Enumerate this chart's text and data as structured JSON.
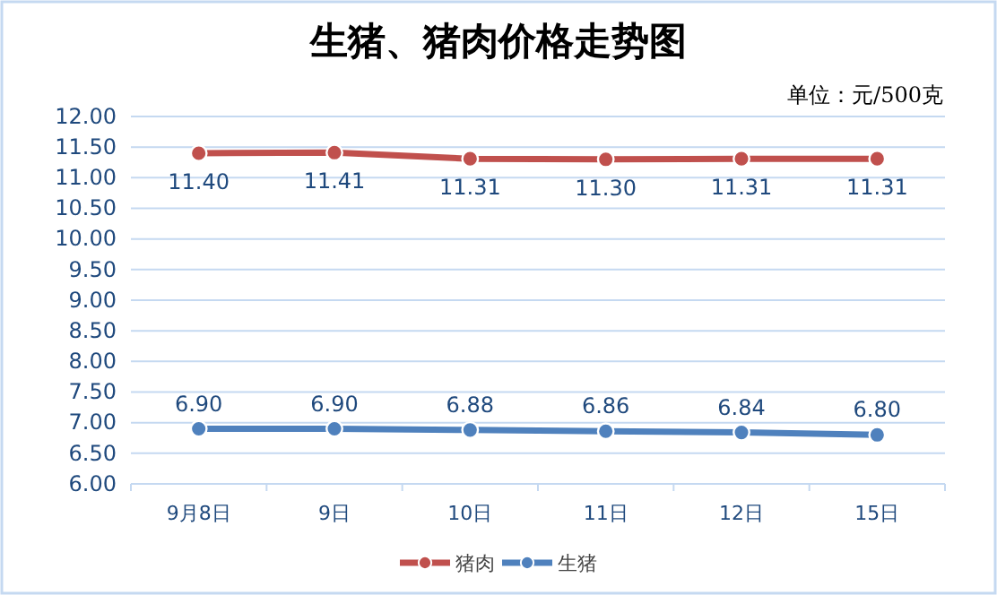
{
  "chart_data": {
    "type": "line",
    "title": "生猪、猪肉价格走势图",
    "subtitle": "单位：元/500克",
    "categories": [
      "9月8日",
      "9日",
      "10日",
      "11日",
      "12日",
      "15日"
    ],
    "series": [
      {
        "name": "猪肉",
        "color": "#c0504d",
        "values": [
          11.4,
          11.41,
          11.31,
          11.3,
          11.31,
          11.31
        ],
        "value_labels": [
          "11.40",
          "11.41",
          "11.31",
          "11.30",
          "11.31",
          "11.31"
        ]
      },
      {
        "name": "生猪",
        "color": "#4f81bd",
        "values": [
          6.9,
          6.9,
          6.88,
          6.86,
          6.84,
          6.8
        ],
        "value_labels": [
          "6.90",
          "6.90",
          "6.88",
          "6.86",
          "6.84",
          "6.80"
        ]
      }
    ],
    "ylim": [
      6,
      12
    ],
    "yticks": [
      {
        "value": 6,
        "label": "6.00"
      },
      {
        "value": 6.5,
        "label": "6.50"
      },
      {
        "value": 7,
        "label": "7.00"
      },
      {
        "value": 7.5,
        "label": "7.50"
      },
      {
        "value": 8,
        "label": "8.00"
      },
      {
        "value": 8.5,
        "label": "8.50"
      },
      {
        "value": 9,
        "label": "9.00"
      },
      {
        "value": 9.5,
        "label": "9.50"
      },
      {
        "value": 10,
        "label": "10.00"
      },
      {
        "value": 10.5,
        "label": "10.50"
      },
      {
        "value": 11,
        "label": "11.00"
      },
      {
        "value": 11.5,
        "label": "11.50"
      },
      {
        "value": 12,
        "label": "12.00"
      }
    ],
    "grid": "y",
    "legend": "bottom",
    "marker": "circle",
    "line_style": "solid"
  }
}
